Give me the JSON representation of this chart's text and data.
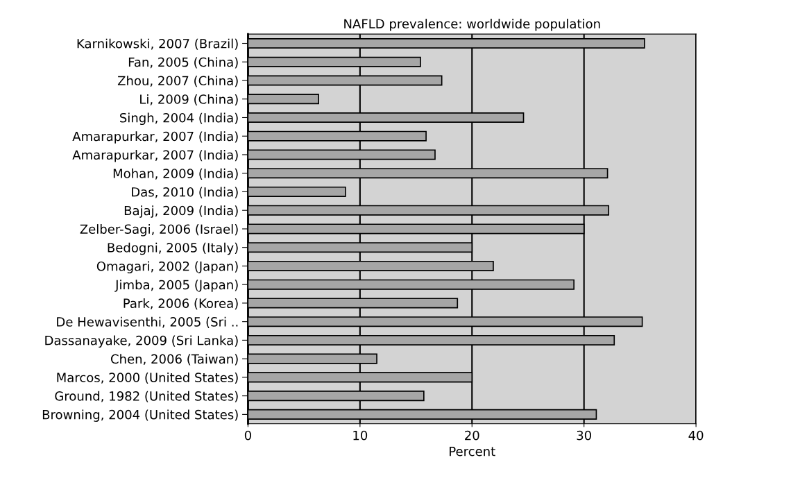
{
  "chart_data": {
    "type": "bar",
    "orientation": "horizontal",
    "title": "NAFLD prevalence: worldwide population",
    "xlabel": "Percent",
    "categories": [
      "Karnikowski, 2007 (Brazil)",
      "Fan, 2005 (China)",
      "Zhou, 2007 (China)",
      "Li, 2009 (China)",
      "Singh, 2004 (India)",
      "Amarapurkar, 2007 (India)",
      "Amarapurkar, 2007 (India)",
      "Mohan, 2009 (India)",
      "Das, 2010 (India)",
      "Bajaj, 2009 (India)",
      "Zelber-Sagi, 2006 (Israel)",
      "Bedogni, 2005 (Italy)",
      "Omagari, 2002 (Japan)",
      "Jimba, 2005 (Japan)",
      "Park, 2006 (Korea)",
      "De Hewavisenthi, 2005 (Sri ..",
      "Dassanayake, 2009 (Sri Lanka)",
      "Chen, 2006 (Taiwan)",
      "Marcos, 2000 (United States)",
      "Ground, 1982 (United States)",
      "Browning, 2004 (United States)"
    ],
    "values": [
      35.4,
      15.4,
      17.3,
      6.3,
      24.6,
      15.9,
      16.7,
      32.1,
      8.7,
      32.2,
      30.0,
      20.0,
      21.9,
      29.1,
      18.7,
      35.2,
      32.7,
      11.5,
      20.0,
      15.7,
      31.1
    ],
    "color": "#a6a6a6",
    "xlim": [
      0,
      40
    ],
    "xticks": [
      0,
      10,
      20,
      30,
      40
    ],
    "grid": "x"
  }
}
